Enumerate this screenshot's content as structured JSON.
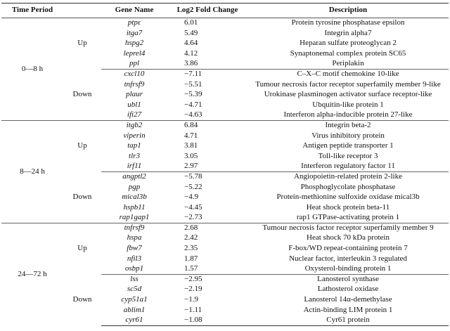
{
  "headers": [
    "Time Period",
    "Gene Name",
    "Log2 Fold Change",
    "Description"
  ],
  "periods": [
    {
      "label": "0—8 h",
      "groups": [
        {
          "direction": "Up",
          "rows": [
            {
              "gene": "ptpε",
              "fc": "6.01",
              "desc": "Protein tyrosine phosphatase epsilon"
            },
            {
              "gene": "itga7",
              "fc": "5.49",
              "desc": "Integrin alpha7"
            },
            {
              "gene": "hspg2",
              "fc": "4.64",
              "desc": "Heparan sulfate proteoglycan 2"
            },
            {
              "gene": "leprel4",
              "fc": "4.12",
              "desc": "Synaptonemal complex protein SC65"
            },
            {
              "gene": "ppl",
              "fc": "3.86",
              "desc": "Periplakin"
            }
          ]
        },
        {
          "direction": "Down",
          "rows": [
            {
              "gene": "cxcl10",
              "fc": "−7.11",
              "desc": "C–X–C motif chemokine 10-like"
            },
            {
              "gene": "tnfrsf9",
              "fc": "−5.51",
              "desc": "Tumour necrosis factor receptor superfamily member 9-like"
            },
            {
              "gene": "plaur",
              "fc": "−5.39",
              "desc": "Urokinase plasminogen activator surface receptor-like"
            },
            {
              "gene": "ubl1",
              "fc": "−4.71",
              "desc": "Ubquitin-like protein 1"
            },
            {
              "gene": "ifi27",
              "fc": "−4.63",
              "desc": "Interferon alpha-inducible protein 27-like"
            }
          ]
        }
      ]
    },
    {
      "label": "8—24 h",
      "groups": [
        {
          "direction": "Up",
          "rows": [
            {
              "gene": "itgb2",
              "fc": "6.84",
              "desc": "Integrin beta-2"
            },
            {
              "gene": "viperin",
              "fc": "4.71",
              "desc": "Virus inhibitory protein"
            },
            {
              "gene": "tap1",
              "fc": "3.81",
              "desc": "Antigen peptide transporter 1"
            },
            {
              "gene": "tlr3",
              "fc": "3.05",
              "desc": "Toll-like receptor 3"
            },
            {
              "gene": "irf11",
              "fc": "2.97",
              "desc": "Interferon regulatory factor 11"
            }
          ]
        },
        {
          "direction": "Down",
          "rows": [
            {
              "gene": "angptl2",
              "fc": "−5.78",
              "desc": "Angiopoietin-related protein 2-like"
            },
            {
              "gene": "pgp",
              "fc": "−5.22",
              "desc": "Phosphoglycolate phosphatase"
            },
            {
              "gene": "mical3b",
              "fc": "−4.9",
              "desc": "Protein-methionine sulfoxide oxidase mical3b"
            },
            {
              "gene": "hspb11",
              "fc": "−4.45",
              "desc": "Heat shock protein beta-11"
            },
            {
              "gene": "rap1gap1",
              "fc": "−2.73",
              "desc": "rap1 GTPase-activating protein 1"
            }
          ]
        }
      ]
    },
    {
      "label": "24—72 h",
      "groups": [
        {
          "direction": "Up",
          "rows": [
            {
              "gene": "tnfrsf9",
              "fc": "2.68",
              "desc": "Tumour necrosis factor receptor superfamily member 9"
            },
            {
              "gene": "hspa",
              "fc": "2.42",
              "desc": "Heat shock 70 kDa protein"
            },
            {
              "gene": "fbw7",
              "fc": "2.35",
              "desc": "F-box/WD repeat-containing protein 7"
            },
            {
              "gene": "nfil3",
              "fc": "1.87",
              "desc": "Nuclear factor, interleukin 3 regulated"
            },
            {
              "gene": "osbp1",
              "fc": "1.57",
              "desc": "Oxysterol-binding protein 1"
            }
          ]
        },
        {
          "direction": "Down",
          "rows": [
            {
              "gene": "lss",
              "fc": "−2.95",
              "desc": "Lanosterol synthase"
            },
            {
              "gene": "sc5d",
              "fc": "−2.19",
              "desc": "Lathosterol oxidase"
            },
            {
              "gene": "cyp51a1",
              "fc": "−1.9",
              "desc": "Lanosterol 14α-demethylase"
            },
            {
              "gene": "ablim1",
              "fc": "−1.11",
              "desc": "Actin-binding LIM protein 1"
            },
            {
              "gene": "cyr61",
              "fc": "−1.08",
              "desc": "Cyr61 protein"
            }
          ]
        }
      ]
    }
  ]
}
